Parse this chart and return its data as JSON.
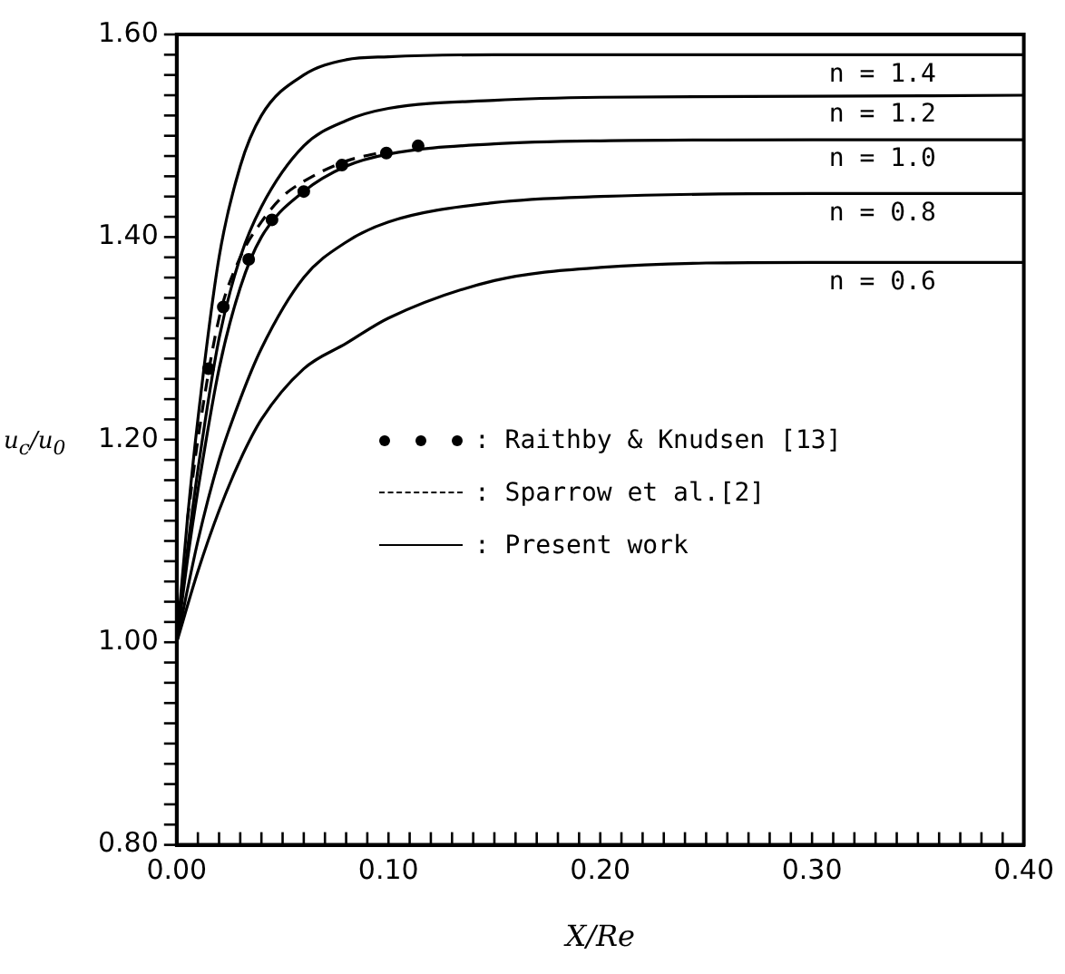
{
  "chart_data": {
    "type": "line",
    "xlabel": "X/Re",
    "ylabel": "u$_{c}$/u$_{0}$",
    "xlim": [
      0,
      0.4
    ],
    "ylim": [
      0.8,
      1.6
    ],
    "xticks": [
      {
        "value": 0,
        "label": "0.00"
      },
      {
        "value": 0.01,
        "label": null
      },
      {
        "value": 0.02,
        "label": null
      },
      {
        "value": 0.03,
        "label": null
      },
      {
        "value": 0.04,
        "label": null
      },
      {
        "value": 0.05,
        "label": null
      },
      {
        "value": 0.06,
        "label": null
      },
      {
        "value": 0.07,
        "label": null
      },
      {
        "value": 0.08,
        "label": null
      },
      {
        "value": 0.09,
        "label": null
      },
      {
        "value": 0.1,
        "label": "0.10"
      },
      {
        "value": 0.11,
        "label": null
      },
      {
        "value": 0.12,
        "label": null
      },
      {
        "value": 0.13,
        "label": null
      },
      {
        "value": 0.14,
        "label": null
      },
      {
        "value": 0.15,
        "label": null
      },
      {
        "value": 0.16,
        "label": null
      },
      {
        "value": 0.17,
        "label": null
      },
      {
        "value": 0.18,
        "label": null
      },
      {
        "value": 0.19,
        "label": null
      },
      {
        "value": 0.2,
        "label": "0.20"
      },
      {
        "value": 0.21,
        "label": null
      },
      {
        "value": 0.22,
        "label": null
      },
      {
        "value": 0.23,
        "label": null
      },
      {
        "value": 0.24,
        "label": null
      },
      {
        "value": 0.25,
        "label": null
      },
      {
        "value": 0.26,
        "label": null
      },
      {
        "value": 0.27,
        "label": null
      },
      {
        "value": 0.28,
        "label": null
      },
      {
        "value": 0.29,
        "label": null
      },
      {
        "value": 0.3,
        "label": "0.30"
      },
      {
        "value": 0.31,
        "label": null
      },
      {
        "value": 0.32,
        "label": null
      },
      {
        "value": 0.33,
        "label": null
      },
      {
        "value": 0.34,
        "label": null
      },
      {
        "value": 0.35,
        "label": null
      },
      {
        "value": 0.36,
        "label": null
      },
      {
        "value": 0.37,
        "label": null
      },
      {
        "value": 0.38,
        "label": null
      },
      {
        "value": 0.39,
        "label": null
      },
      {
        "value": 0.4,
        "label": "0.40"
      }
    ],
    "yticks": [
      {
        "value": 0.8,
        "label": "0.80"
      },
      {
        "value": 0.82,
        "label": null
      },
      {
        "value": 0.84,
        "label": null
      },
      {
        "value": 0.86,
        "label": null
      },
      {
        "value": 0.88,
        "label": null
      },
      {
        "value": 0.9,
        "label": null
      },
      {
        "value": 0.92,
        "label": null
      },
      {
        "value": 0.94,
        "label": null
      },
      {
        "value": 0.96,
        "label": null
      },
      {
        "value": 0.98,
        "label": null
      },
      {
        "value": 1.0,
        "label": "1.00"
      },
      {
        "value": 1.02,
        "label": null
      },
      {
        "value": 1.04,
        "label": null
      },
      {
        "value": 1.06,
        "label": null
      },
      {
        "value": 1.08,
        "label": null
      },
      {
        "value": 1.1,
        "label": null
      },
      {
        "value": 1.12,
        "label": null
      },
      {
        "value": 1.14,
        "label": null
      },
      {
        "value": 1.16,
        "label": null
      },
      {
        "value": 1.18,
        "label": null
      },
      {
        "value": 1.2,
        "label": "1.20"
      },
      {
        "value": 1.22,
        "label": null
      },
      {
        "value": 1.24,
        "label": null
      },
      {
        "value": 1.26,
        "label": null
      },
      {
        "value": 1.28,
        "label": null
      },
      {
        "value": 1.3,
        "label": null
      },
      {
        "value": 1.32,
        "label": null
      },
      {
        "value": 1.34,
        "label": null
      },
      {
        "value": 1.36,
        "label": null
      },
      {
        "value": 1.38,
        "label": null
      },
      {
        "value": 1.4,
        "label": "1.40"
      },
      {
        "value": 1.42,
        "label": null
      },
      {
        "value": 1.44,
        "label": null
      },
      {
        "value": 1.46,
        "label": null
      },
      {
        "value": 1.48,
        "label": null
      },
      {
        "value": 1.5,
        "label": null
      },
      {
        "value": 1.52,
        "label": null
      },
      {
        "value": 1.54,
        "label": null
      },
      {
        "value": 1.56,
        "label": null
      },
      {
        "value": 1.58,
        "label": null
      },
      {
        "value": 1.6,
        "label": "1.60"
      }
    ],
    "legend": "center",
    "series": [
      {
        "name": ": Raithby & Knudsen [13]",
        "type": "scatter",
        "marker": "circle",
        "color": "#000000",
        "x": [
          0.015,
          0.022,
          0.034,
          0.045,
          0.06,
          0.078,
          0.099,
          0.114
        ],
        "values": [
          1.27,
          1.331,
          1.378,
          1.417,
          1.445,
          1.471,
          1.483,
          1.49
        ]
      },
      {
        "name": ": Sparrow et al.[2]",
        "line_style": "dashed",
        "color": "#000000",
        "x": [
          0.005,
          0.01,
          0.02,
          0.03,
          0.04,
          0.05,
          0.06,
          0.08,
          0.1
        ],
        "values": [
          1.12,
          1.2,
          1.32,
          1.38,
          1.415,
          1.44,
          1.455,
          1.475,
          1.485
        ]
      },
      {
        "name": ": Present work",
        "line_style": "solid",
        "color": "#000000",
        "x": [
          0,
          0.005,
          0.01,
          0.02,
          0.03,
          0.04,
          0.06,
          0.08,
          0.1,
          0.15,
          0.2,
          0.3,
          0.4
        ],
        "values": [
          1.0,
          1.12,
          1.22,
          1.38,
          1.47,
          1.52,
          1.56,
          1.575,
          1.578,
          1.58,
          1.58,
          1.58,
          1.58
        ]
      },
      {
        "line_style": "solid",
        "color": "#000000",
        "x": [
          0,
          0.005,
          0.01,
          0.02,
          0.03,
          0.04,
          0.06,
          0.08,
          0.1,
          0.15,
          0.2,
          0.3,
          0.4
        ],
        "values": [
          1.0,
          1.09,
          1.17,
          1.3,
          1.38,
          1.43,
          1.49,
          1.515,
          1.527,
          1.535,
          1.538,
          1.539,
          1.54
        ]
      },
      {
        "line_style": "solid",
        "color": "#000000",
        "x": [
          0,
          0.005,
          0.01,
          0.02,
          0.03,
          0.04,
          0.06,
          0.08,
          0.1,
          0.15,
          0.2,
          0.3,
          0.4
        ],
        "values": [
          1.0,
          1.08,
          1.15,
          1.27,
          1.35,
          1.4,
          1.445,
          1.47,
          1.482,
          1.492,
          1.495,
          1.496,
          1.496
        ]
      },
      {
        "line_style": "solid",
        "color": "#000000",
        "x": [
          0,
          0.01,
          0.02,
          0.03,
          0.04,
          0.06,
          0.08,
          0.1,
          0.15,
          0.2,
          0.3,
          0.4
        ],
        "values": [
          1.0,
          1.1,
          1.18,
          1.24,
          1.29,
          1.36,
          1.395,
          1.415,
          1.434,
          1.44,
          1.443,
          1.443
        ]
      },
      {
        "line_style": "solid",
        "color": "#000000",
        "x": [
          0,
          0.01,
          0.02,
          0.03,
          0.04,
          0.06,
          0.08,
          0.1,
          0.15,
          0.2,
          0.3,
          0.4
        ],
        "values": [
          1.0,
          1.07,
          1.13,
          1.18,
          1.22,
          1.27,
          1.295,
          1.32,
          1.357,
          1.37,
          1.375,
          1.375
        ]
      }
    ],
    "annotations": [
      "n = 1.4",
      "n = 1.2",
      "n = 1.0",
      "n = 0.8",
      "n = 0.6"
    ]
  }
}
